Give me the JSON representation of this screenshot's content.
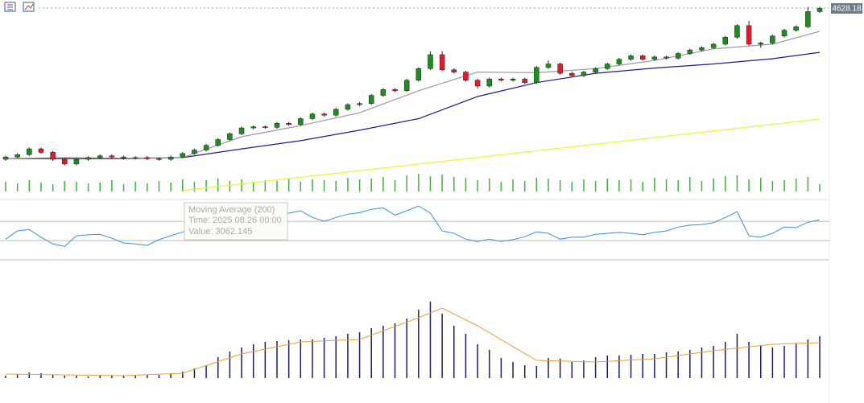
{
  "chart_data": [
    {
      "type": "candlestick",
      "up_color": "#1a8f1a",
      "down_color": "#e8182c",
      "ylim": [
        3040,
        4700
      ],
      "candles": [
        [
          3330,
          3362,
          3318,
          3350
        ],
        [
          3350,
          3382,
          3338,
          3370
        ],
        [
          3370,
          3432,
          3358,
          3420
        ],
        [
          3420,
          3432,
          3378,
          3390
        ],
        [
          3390,
          3402,
          3318,
          3330
        ],
        [
          3330,
          3342,
          3278,
          3290
        ],
        [
          3290,
          3342,
          3278,
          3330
        ],
        [
          3330,
          3357,
          3318,
          3345
        ],
        [
          3345,
          3372,
          3333,
          3360
        ],
        [
          3360,
          3372,
          3338,
          3350
        ],
        [
          3350,
          3362,
          3328,
          3340
        ],
        [
          3340,
          3357,
          3328,
          3345
        ],
        [
          3345,
          3357,
          3323,
          3335
        ],
        [
          3335,
          3347,
          3318,
          3330
        ],
        [
          3330,
          3362,
          3318,
          3350
        ],
        [
          3350,
          3392,
          3338,
          3380
        ],
        [
          3380,
          3422,
          3368,
          3410
        ],
        [
          3410,
          3462,
          3398,
          3450
        ],
        [
          3450,
          3512,
          3438,
          3500
        ],
        [
          3500,
          3562,
          3488,
          3550
        ],
        [
          3550,
          3612,
          3538,
          3600
        ],
        [
          3600,
          3622,
          3588,
          3610
        ],
        [
          3610,
          3622,
          3593,
          3605
        ],
        [
          3605,
          3652,
          3593,
          3640
        ],
        [
          3640,
          3652,
          3618,
          3630
        ],
        [
          3630,
          3692,
          3618,
          3680
        ],
        [
          3680,
          3732,
          3668,
          3720
        ],
        [
          3720,
          3732,
          3698,
          3710
        ],
        [
          3710,
          3772,
          3698,
          3760
        ],
        [
          3760,
          3812,
          3748,
          3800
        ],
        [
          3800,
          3822,
          3788,
          3810
        ],
        [
          3810,
          3892,
          3798,
          3880
        ],
        [
          3880,
          3942,
          3868,
          3930
        ],
        [
          3930,
          3942,
          3908,
          3920
        ],
        [
          3920,
          4022,
          3908,
          4010
        ],
        [
          4010,
          4122,
          3998,
          4110
        ],
        [
          4110,
          4260,
          4098,
          4230
        ],
        [
          4230,
          4260,
          4088,
          4100
        ],
        [
          4100,
          4112,
          4068,
          4080
        ],
        [
          4080,
          4092,
          3998,
          4010
        ],
        [
          4010,
          4022,
          3940,
          3960
        ],
        [
          3960,
          4032,
          3948,
          4020
        ],
        [
          4020,
          4032,
          3998,
          4010
        ],
        [
          4010,
          4032,
          3998,
          4020
        ],
        [
          4020,
          4032,
          3978,
          3990
        ],
        [
          3990,
          4132,
          3978,
          4120
        ],
        [
          4120,
          4180,
          4108,
          4150
        ],
        [
          4150,
          4162,
          4058,
          4070
        ],
        [
          4070,
          4082,
          4038,
          4050
        ],
        [
          4050,
          4092,
          4038,
          4080
        ],
        [
          4080,
          4122,
          4068,
          4110
        ],
        [
          4110,
          4162,
          4098,
          4150
        ],
        [
          4150,
          4202,
          4138,
          4190
        ],
        [
          4190,
          4232,
          4178,
          4220
        ],
        [
          4220,
          4232,
          4178,
          4190
        ],
        [
          4190,
          4222,
          4178,
          4210
        ],
        [
          4210,
          4222,
          4188,
          4200
        ],
        [
          4200,
          4252,
          4188,
          4240
        ],
        [
          4240,
          4282,
          4228,
          4270
        ],
        [
          4270,
          4302,
          4258,
          4290
        ],
        [
          4290,
          4332,
          4278,
          4320
        ],
        [
          4320,
          4392,
          4308,
          4380
        ],
        [
          4380,
          4492,
          4368,
          4480
        ],
        [
          4480,
          4520,
          4308,
          4320
        ],
        [
          4320,
          4342,
          4290,
          4330
        ],
        [
          4330,
          4402,
          4318,
          4390
        ],
        [
          4390,
          4452,
          4378,
          4440
        ],
        [
          4440,
          4482,
          4428,
          4470
        ],
        [
          4470,
          4640,
          4458,
          4600
        ],
        [
          4600,
          4640,
          4588,
          4628.18
        ]
      ],
      "series": [
        {
          "name": "Moving Average (200)",
          "color": "#f2f230",
          "x": [
            15,
            69
          ],
          "values": [
            3062.145,
            3676
          ]
        },
        {
          "color": "#1c1c8c",
          "x": [
            0,
            5,
            10,
            15,
            20,
            25,
            30,
            35,
            40,
            45,
            50,
            55,
            60,
            65,
            69
          ],
          "values": [
            3337,
            3335,
            3335,
            3345,
            3420,
            3490,
            3580,
            3680,
            3870,
            3990,
            4070,
            4115,
            4150,
            4195,
            4250
          ]
        },
        {
          "color": "#9a9a9a",
          "x": [
            0,
            5,
            10,
            15,
            20,
            25,
            30,
            35,
            40,
            45,
            50,
            55,
            60,
            65,
            69
          ],
          "values": [
            3337,
            3345,
            3340,
            3345,
            3524,
            3620,
            3730,
            3920,
            4080,
            4075,
            4110,
            4180,
            4280,
            4320,
            4430
          ]
        }
      ],
      "volume": {
        "color": "#3cb43c",
        "ylim": [
          0,
          30
        ],
        "values": [
          12,
          10,
          14,
          11,
          9,
          13,
          12,
          10,
          11,
          14,
          9,
          12,
          10,
          13,
          11,
          15,
          12,
          14,
          16,
          13,
          15,
          12,
          14,
          13,
          16,
          12,
          15,
          14,
          13,
          17,
          15,
          16,
          18,
          14,
          20,
          22,
          19,
          21,
          18,
          17,
          14,
          16,
          12,
          15,
          13,
          17,
          16,
          14,
          12,
          15,
          13,
          16,
          14,
          15,
          12,
          17,
          15,
          14,
          18,
          13,
          16,
          19,
          20,
          15,
          17,
          13,
          14,
          16,
          18,
          9
        ]
      },
      "tooltip": {
        "title": "Moving Average (200)",
        "time": "Time: 2025.08.26 00:00",
        "value": "Value: 3062.145"
      }
    },
    {
      "type": "line",
      "color": "#3a8fd8",
      "ylim": [
        -10,
        112
      ],
      "levels": [
        70,
        30
      ],
      "values": [
        33,
        50,
        53,
        37,
        23,
        18,
        40,
        42,
        43,
        35,
        25,
        23,
        20,
        32,
        40,
        48,
        53,
        62,
        68,
        68,
        70,
        75,
        82,
        83,
        87,
        92,
        78,
        70,
        78,
        85,
        88,
        95,
        98,
        83,
        92,
        102,
        87,
        50,
        45,
        33,
        28,
        33,
        28,
        32,
        38,
        48,
        45,
        33,
        37,
        37,
        43,
        45,
        47,
        45,
        42,
        47,
        50,
        58,
        62,
        63,
        67,
        78,
        90,
        40,
        37,
        45,
        58,
        57,
        68,
        73
      ]
    },
    {
      "type": "bar",
      "color": "#1a1a6e",
      "ylim": [
        0,
        100
      ],
      "values": [
        3,
        5,
        7,
        6,
        4,
        3,
        3,
        2,
        3,
        3,
        3,
        3,
        4,
        4,
        6,
        8,
        12,
        16,
        26,
        33,
        38,
        42,
        45,
        46,
        47,
        48,
        48,
        50,
        52,
        55,
        57,
        62,
        65,
        68,
        74,
        85,
        95,
        80,
        65,
        55,
        42,
        35,
        25,
        20,
        16,
        15,
        25,
        24,
        20,
        22,
        26,
        28,
        28,
        29,
        30,
        30,
        32,
        33,
        35,
        38,
        40,
        45,
        55,
        45,
        40,
        38,
        40,
        43,
        48,
        52
      ],
      "series": [
        {
          "color": "#e8a030",
          "x": [
            0,
            5,
            10,
            15,
            20,
            25,
            30,
            35,
            37,
            40,
            45,
            50,
            55,
            60,
            65,
            69
          ],
          "values": [
            5,
            4,
            3,
            6,
            30,
            45,
            48,
            75,
            87,
            65,
            22,
            20,
            24,
            34,
            42,
            44
          ]
        }
      ]
    }
  ]
}
